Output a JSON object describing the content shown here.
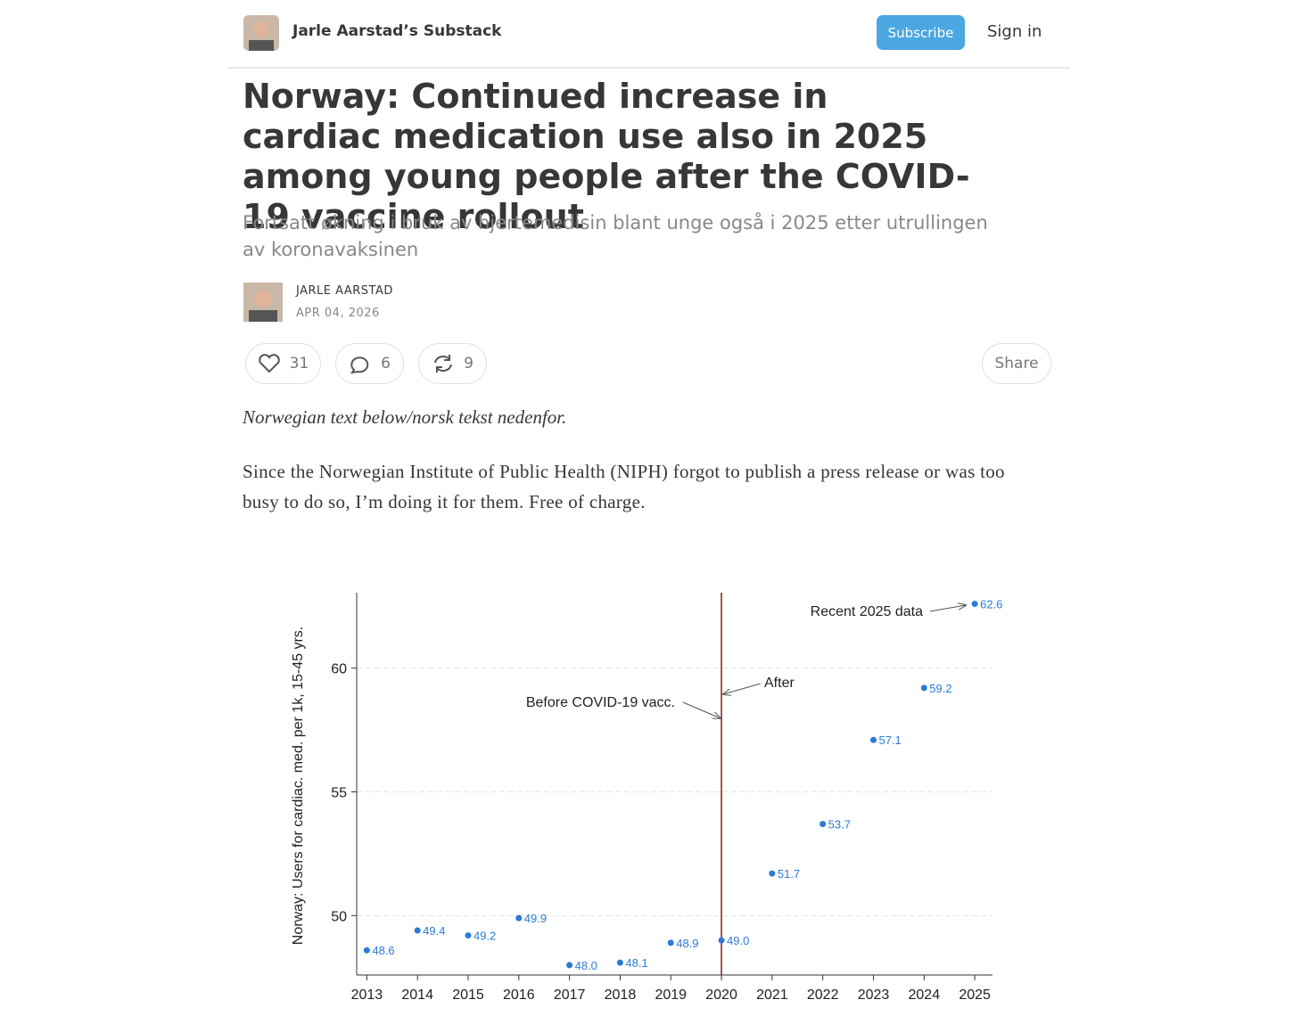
{
  "header": {
    "publication": "Jarle Aarstad’s Substack",
    "subscribe": "Subscribe",
    "sign_in": "Sign in"
  },
  "article": {
    "title": "Norway: Continued increase in cardiac medication use also in 2025 among young people after the COVID-19 vaccine rollout",
    "subtitle": "Fortsatt økning i bruk av hjertemedisin blant unge også i 2025 etter utrullingen av koronavaksinen",
    "author": "JARLE AARSTAD",
    "date": "APR 04, 2026",
    "likes": 31,
    "comments": 6,
    "restacks": 9,
    "share": "Share",
    "note": "Norwegian text below/norsk tekst nedenfor.",
    "paragraph": "Since the Norwegian Institute of Public Health (NIPH) forgot to publish a press release or was too busy to do so, I’m doing it for them. Free of charge."
  },
  "chart_data": {
    "type": "scatter",
    "y_label": "Norway: Users for cardiac. med. per 1k, 15-45 yrs.",
    "x": [
      2013,
      2014,
      2015,
      2016,
      2017,
      2018,
      2019,
      2020,
      2021,
      2022,
      2023,
      2024,
      2025
    ],
    "values": [
      48.6,
      49.4,
      49.2,
      49.9,
      48.0,
      48.1,
      48.9,
      49.0,
      51.7,
      53.7,
      57.1,
      59.2,
      62.6
    ],
    "value_labels": [
      "48.6",
      "49.4",
      "49.2",
      "49.9",
      "48.0",
      "48.1",
      "48.9",
      "49.0",
      "51.7",
      "53.7",
      "57.1",
      "59.2",
      "62.6"
    ],
    "color": "#2b7bd6",
    "xlim": [
      2012.8,
      2025.35
    ],
    "ylim": [
      47.6,
      63.05
    ],
    "xticks": [
      2013,
      2014,
      2015,
      2016,
      2017,
      2018,
      2019,
      2020,
      2021,
      2022,
      2023,
      2024,
      2025
    ],
    "yticks": [
      50,
      55,
      60
    ],
    "grid": true,
    "vline": {
      "x": 2020,
      "color": "#8b1a1a"
    },
    "annotations": [
      "Recent 2025 data",
      "After",
      "Before COVID-19 vacc."
    ]
  }
}
